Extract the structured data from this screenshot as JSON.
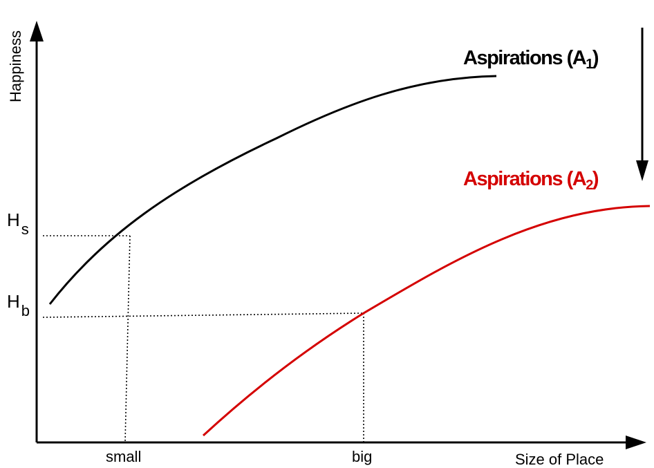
{
  "axes": {
    "x_label": "Size of Place",
    "y_label": "Happiness"
  },
  "ticks": {
    "x_small": "small",
    "x_big": "big",
    "y_hs_main": "H",
    "y_hs_sub": "s",
    "y_hb_main": "H",
    "y_hb_sub": "b"
  },
  "curves": {
    "a1": {
      "label_main": "Aspirations (A",
      "label_sub": "1",
      "label_close": ")",
      "color": "#000000"
    },
    "a2": {
      "label_main": "Aspirations (A",
      "label_sub": "2",
      "label_close": ")",
      "color": "#d40000"
    }
  },
  "colors": {
    "axis": "#000000",
    "guide": "#000000"
  }
}
